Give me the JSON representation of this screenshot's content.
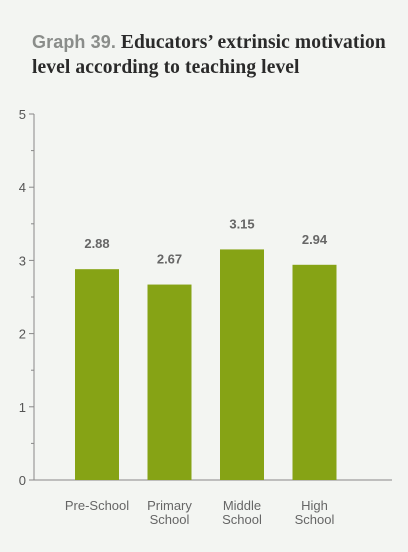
{
  "header": {
    "prefix": "Graph 39.",
    "title": "Educators’ extrinsic motivation level according to teaching level"
  },
  "colors": {
    "bar": "#86a315",
    "axis": "#888888",
    "text": "#666666"
  },
  "chart_data": {
    "type": "bar",
    "title": "Educators’ extrinsic motivation level according to teaching level",
    "categories": [
      [
        "Pre-School"
      ],
      [
        "Primary",
        "School"
      ],
      [
        "Middle",
        "School"
      ],
      [
        "High",
        "School"
      ]
    ],
    "values": [
      2.88,
      2.67,
      3.15,
      2.94
    ],
    "value_labels": [
      "2.88",
      "2.67",
      "3.15",
      "2.94"
    ],
    "ylim": [
      0,
      5
    ],
    "yticks": [
      "0",
      "1",
      "2",
      "3",
      "4",
      "5"
    ],
    "xlabel": "",
    "ylabel": "",
    "grid": false
  }
}
